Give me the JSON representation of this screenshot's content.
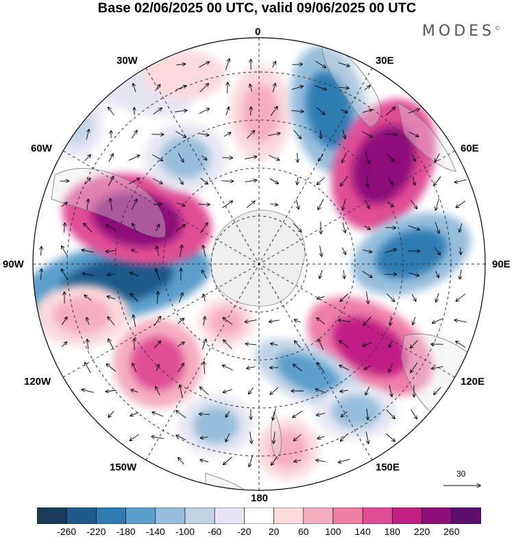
{
  "title": "Base 02/06/2025 00 UTC, valid 09/06/2025 00 UTC",
  "brand": "MODES",
  "brand_mark": "©",
  "longitude_labels": {
    "top": "0",
    "top_right": "30E",
    "right_upper": "60E",
    "right": "90E",
    "right_lower": "120E",
    "bottom_right": "150E",
    "bottom": "180",
    "bottom_left": "150W",
    "left_lower": "120W",
    "left": "90W",
    "left_upper": "60W",
    "top_left": "30W"
  },
  "reference_vector": {
    "label": "30",
    "icon": "arrow-right-icon"
  },
  "colorbar": {
    "ticks": [
      "-260",
      "-220",
      "-180",
      "-140",
      "-100",
      "-60",
      "-20",
      "20",
      "60",
      "100",
      "140",
      "180",
      "220",
      "260"
    ],
    "colors": [
      "#1c3b5a",
      "#1f5a8a",
      "#2f7cb4",
      "#5b9fcb",
      "#97bedd",
      "#c2d3e8",
      "#e6e6f2",
      "#ffffff",
      "#fbd9dd",
      "#f5aec0",
      "#ee80a8",
      "#df4d94",
      "#c01f85",
      "#8e0f7a",
      "#5d0f6e"
    ]
  },
  "map": {
    "type": "polar-stereographic",
    "hemisphere": "south",
    "land_color": "#eeeeee",
    "coast_color": "#888888"
  }
}
